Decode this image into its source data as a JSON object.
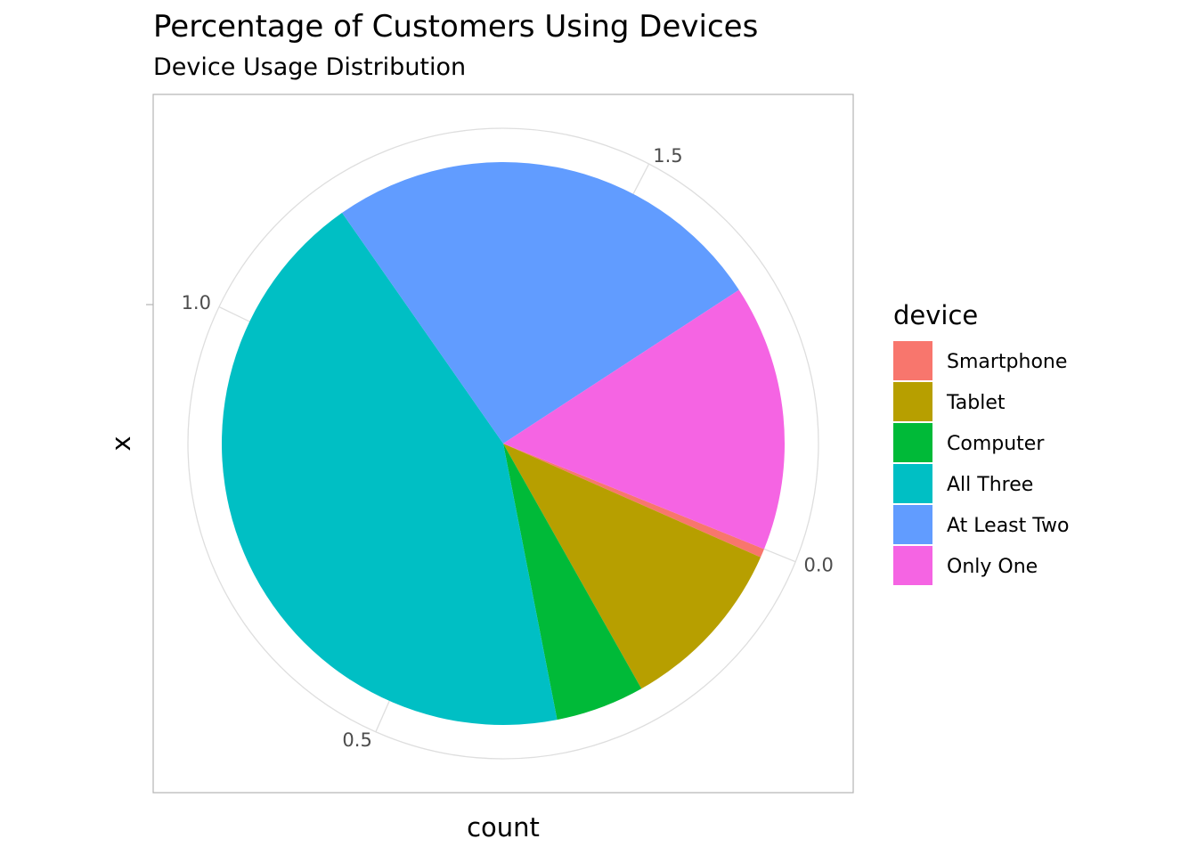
{
  "chart_data": {
    "type": "pie",
    "title": "Percentage of Customers Using Devices",
    "subtitle": "Device Usage Distribution",
    "xlabel": "count",
    "ylabel": "x",
    "theta_ticks": [
      "0.0",
      "0.5",
      "1.0",
      "1.5"
    ],
    "legend": {
      "title": "device",
      "position": "right"
    },
    "total": 1.96,
    "categories": [
      "Smartphone",
      "Tablet",
      "Computer",
      "All Three",
      "At Least Two",
      "Only One"
    ],
    "values": [
      0.01,
      0.2,
      0.1,
      0.85,
      0.5,
      0.3
    ],
    "colors": [
      "#F8766D",
      "#B79F00",
      "#00BA38",
      "#00BFC4",
      "#619CFF",
      "#F564E3"
    ],
    "grid": true
  }
}
